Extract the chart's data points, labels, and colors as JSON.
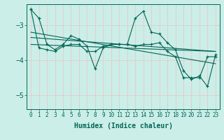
{
  "xlabel": "Humidex (Indice chaleur)",
  "bg_color": "#cceee8",
  "line_color": "#006655",
  "grid_color": "#e8c8c8",
  "xlim": [
    -0.5,
    23.5
  ],
  "ylim": [
    -5.4,
    -2.4
  ],
  "yticks": [
    -5,
    -4,
    -3
  ],
  "xticks": [
    0,
    1,
    2,
    3,
    4,
    5,
    6,
    7,
    8,
    9,
    10,
    11,
    12,
    13,
    14,
    15,
    16,
    17,
    18,
    19,
    20,
    21,
    22,
    23
  ],
  "series1_x": [
    0,
    1,
    2,
    3,
    4,
    5,
    6,
    7,
    8,
    9,
    10,
    11,
    12,
    13,
    14,
    15,
    16,
    17,
    18,
    19,
    20,
    21,
    22,
    23
  ],
  "series1_y": [
    -2.55,
    -3.65,
    -3.7,
    -3.75,
    -3.6,
    -3.55,
    -3.55,
    -3.75,
    -3.75,
    -3.6,
    -3.55,
    -3.55,
    -3.55,
    -3.6,
    -3.55,
    -3.55,
    -3.5,
    -3.75,
    -3.9,
    -4.5,
    -4.5,
    -4.5,
    -3.9,
    -3.9
  ],
  "series2_x": [
    0,
    1,
    2,
    3,
    4,
    5,
    6,
    7,
    8,
    9,
    10,
    11,
    12,
    13,
    14,
    15,
    16,
    17,
    18,
    19,
    20,
    21,
    22,
    23
  ],
  "series2_y": [
    -2.55,
    -2.8,
    -3.55,
    -3.7,
    -3.55,
    -3.3,
    -3.4,
    -3.6,
    -4.25,
    -3.65,
    -3.55,
    -3.55,
    -3.55,
    -2.8,
    -2.6,
    -3.2,
    -3.25,
    -3.5,
    -3.7,
    -4.3,
    -4.55,
    -4.45,
    -4.75,
    -3.85
  ],
  "trend1_x": [
    0,
    23
  ],
  "trend1_y": [
    -3.35,
    -3.75
  ],
  "trend2_x": [
    0,
    23
  ],
  "trend2_y": [
    -3.55,
    -3.75
  ],
  "trend3_x": [
    0,
    23
  ],
  "trend3_y": [
    -3.2,
    -4.1
  ]
}
